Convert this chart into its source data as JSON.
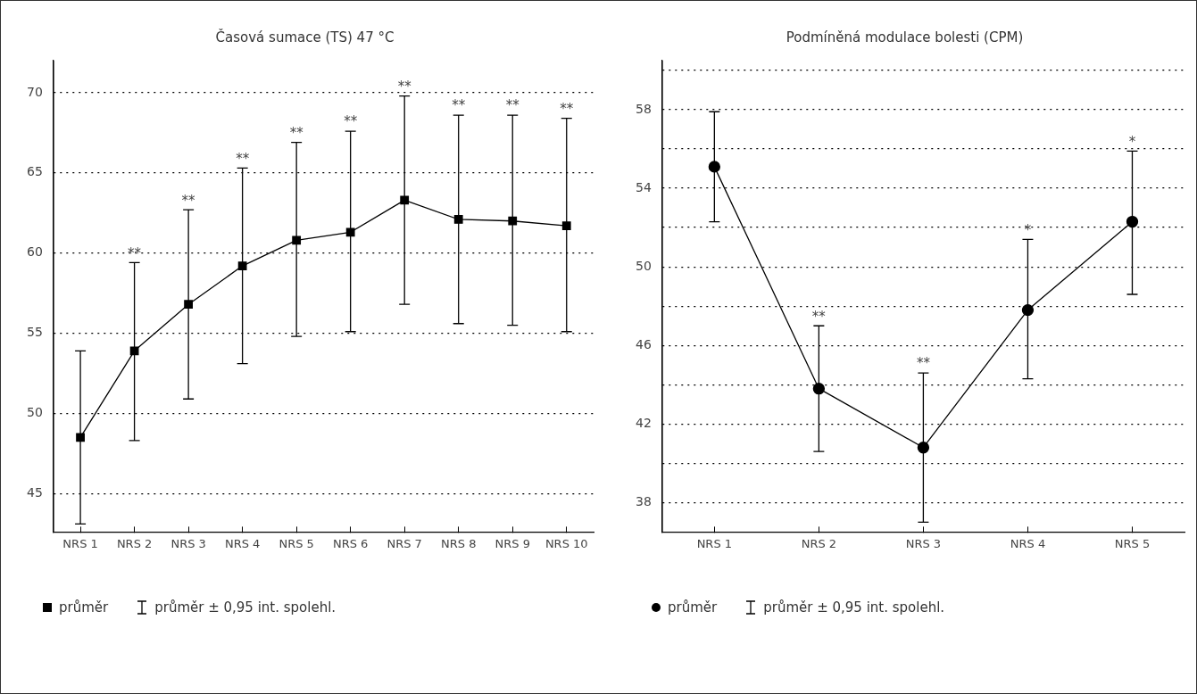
{
  "chart_data": [
    {
      "type": "line",
      "title": "Časová sumace (TS) 47 °C",
      "categories": [
        "NRS 1",
        "NRS 2",
        "NRS 3",
        "NRS 4",
        "NRS 5",
        "NRS 6",
        "NRS 7",
        "NRS 8",
        "NRS 9",
        "NRS 10"
      ],
      "series": [
        {
          "name": "průměr",
          "color": "#000000",
          "values": [
            48.5,
            53.9,
            56.8,
            59.2,
            60.8,
            61.3,
            63.3,
            62.1,
            62.0,
            61.7
          ],
          "errors": [
            [
              43.1,
              53.9
            ],
            [
              48.3,
              59.4
            ],
            [
              50.9,
              62.7
            ],
            [
              53.1,
              65.3
            ],
            [
              54.8,
              66.9
            ],
            [
              55.1,
              67.6
            ],
            [
              56.8,
              69.8
            ],
            [
              55.6,
              68.6
            ],
            [
              55.5,
              68.6
            ],
            [
              55.1,
              68.4
            ]
          ]
        }
      ],
      "marker": "square",
      "line_style": "solid",
      "grid": "y",
      "legend": "bottom left",
      "ylim": [
        42.6,
        72
      ],
      "yticks": [
        45,
        50,
        55,
        60,
        65,
        70
      ],
      "annotations": [
        {
          "text": "**",
          "x": "NRS 2",
          "y": 59.4
        },
        {
          "text": "**",
          "x": "NRS 3",
          "y": 62.7
        },
        {
          "text": "**",
          "x": "NRS 4",
          "y": 65.3
        },
        {
          "text": "**",
          "x": "NRS 5",
          "y": 66.9
        },
        {
          "text": "**",
          "x": "NRS 6",
          "y": 67.6
        },
        {
          "text": "**",
          "x": "NRS 7",
          "y": 69.8
        },
        {
          "text": "**",
          "x": "NRS 8",
          "y": 68.6
        },
        {
          "text": "**",
          "x": "NRS 9",
          "y": 68.6
        },
        {
          "text": "**",
          "x": "NRS 10",
          "y": 68.4
        },
        "průměr ± 0,95 int. spolehl."
      ]
    },
    {
      "type": "line",
      "title": "Podmíněná modulace bolesti (CPM)",
      "categories": [
        "NRS 1",
        "NRS 2",
        "NRS 3",
        "NRS 4",
        "NRS 5"
      ],
      "series": [
        {
          "name": "průměr",
          "color": "#000000",
          "values": [
            55.1,
            43.8,
            40.8,
            47.8,
            52.3
          ],
          "errors": [
            [
              52.3,
              57.9
            ],
            [
              40.6,
              47.0
            ],
            [
              37.0,
              44.6
            ],
            [
              44.3,
              51.4
            ],
            [
              48.6,
              55.9
            ]
          ]
        }
      ],
      "marker": "circle",
      "line_style": "solid",
      "grid": "y",
      "legend": "bottom left",
      "ylim": [
        36.5,
        60.5
      ],
      "yticks": [
        38,
        {
          "value": 40,
          "label": null
        },
        42,
        {
          "value": 44,
          "label": null
        },
        46,
        {
          "value": 48,
          "label": null
        },
        50,
        {
          "value": 52,
          "label": null
        },
        54,
        {
          "value": 56,
          "label": null
        },
        58,
        {
          "value": 60,
          "label": null
        }
      ],
      "annotations": [
        {
          "text": "**",
          "x": "NRS 2",
          "y": 47.0
        },
        {
          "text": "**",
          "x": "NRS 3",
          "y": 44.6
        },
        {
          "text": "*",
          "x": "NRS 4",
          "y": 51.4
        },
        {
          "text": "*",
          "x": "NRS 5",
          "y": 55.9
        },
        "průměr ± 0,95 int. spolehl."
      ]
    }
  ]
}
